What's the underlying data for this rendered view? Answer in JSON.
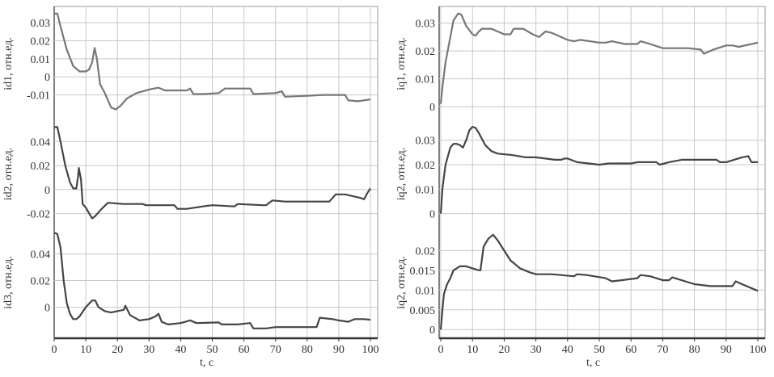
{
  "chart_data": [
    {
      "type": "line",
      "column": "left",
      "ylabel": "id1, отн.ед.",
      "ylim": [
        -0.0245,
        0.039
      ],
      "yticks": [
        {
          "v": 0.03,
          "label": "0.03"
        },
        {
          "v": 0.02,
          "label": "0.02"
        },
        {
          "v": 0.01,
          "label": "0.01"
        },
        {
          "v": 0,
          "label": "0"
        },
        {
          "v": -0.01,
          "label": "-0.01"
        }
      ],
      "color": "#777777",
      "x": [
        0,
        1,
        2,
        4,
        6,
        8,
        10,
        11,
        12,
        12.8,
        13.5,
        14.5,
        16,
        18,
        19.5,
        21,
        23,
        26,
        30,
        33,
        35,
        42,
        43,
        44,
        47,
        52,
        54,
        62,
        63,
        70,
        72,
        73,
        80,
        85,
        92,
        93,
        96,
        100
      ],
      "y": [
        0.035,
        0.035,
        0.028,
        0.015,
        0.006,
        0.003,
        0.003,
        0.004,
        0.008,
        0.016,
        0.01,
        -0.004,
        -0.009,
        -0.017,
        -0.018,
        -0.016,
        -0.012,
        -0.009,
        -0.007,
        -0.006,
        -0.0075,
        -0.0075,
        -0.0065,
        -0.0095,
        -0.0095,
        -0.009,
        -0.0065,
        -0.0065,
        -0.0095,
        -0.009,
        -0.008,
        -0.011,
        -0.0105,
        -0.01,
        -0.01,
        -0.013,
        -0.0135,
        -0.0125
      ]
    },
    {
      "type": "line",
      "column": "left",
      "ylabel": "id2, отн.ед.",
      "ylim": [
        -0.031,
        0.057
      ],
      "yticks": [
        {
          "v": 0.04,
          "label": "0.04"
        },
        {
          "v": 0.02,
          "label": "0.02"
        },
        {
          "v": 0,
          "label": "0"
        },
        {
          "v": -0.02,
          "label": "-0.02"
        }
      ],
      "color": "#454545",
      "x": [
        0,
        1,
        2,
        3.5,
        5,
        6,
        7,
        7.5,
        7.8,
        8.5,
        9,
        10,
        12,
        13,
        15,
        17,
        22,
        28,
        29,
        38,
        39,
        42,
        47,
        50,
        57,
        58,
        66,
        67,
        69,
        73,
        87,
        88,
        89,
        92,
        97,
        98,
        99,
        100
      ],
      "y": [
        0.052,
        0.052,
        0.04,
        0.02,
        0.006,
        0.001,
        0.001,
        0.01,
        0.018,
        0.008,
        -0.012,
        -0.015,
        -0.024,
        -0.022,
        -0.016,
        -0.011,
        -0.012,
        -0.012,
        -0.013,
        -0.013,
        -0.016,
        -0.016,
        -0.014,
        -0.013,
        -0.014,
        -0.012,
        -0.013,
        -0.013,
        -0.009,
        -0.01,
        -0.01,
        -0.007,
        -0.004,
        -0.004,
        -0.007,
        -0.008,
        -0.003,
        0.001
      ]
    },
    {
      "type": "line",
      "column": "left",
      "ylabel": "id3, отн.ед.",
      "ylim": [
        -0.0234,
        0.0604
      ],
      "yticks": [
        {
          "v": 0.04,
          "label": "0.04"
        },
        {
          "v": 0.02,
          "label": "0.02"
        },
        {
          "v": 0,
          "label": "0"
        }
      ],
      "color": "#454545",
      "x": [
        0,
        1,
        2,
        3,
        4,
        5,
        6,
        7,
        8,
        10,
        12,
        13,
        14,
        16,
        18,
        22,
        22.5,
        24,
        27,
        30,
        32,
        33,
        34,
        36,
        40,
        43,
        45,
        52,
        53,
        58,
        62,
        63,
        67,
        70,
        83,
        84,
        88,
        90,
        93,
        95,
        98,
        100
      ],
      "y": [
        0.056,
        0.055,
        0.045,
        0.02,
        0.003,
        -0.005,
        -0.009,
        -0.009,
        -0.007,
        0,
        0.005,
        0.005,
        0,
        -0.003,
        -0.004,
        -0.002,
        0.001,
        -0.006,
        -0.01,
        -0.009,
        -0.007,
        -0.005,
        -0.011,
        -0.013,
        -0.012,
        -0.01,
        -0.012,
        -0.0115,
        -0.013,
        -0.013,
        -0.012,
        -0.016,
        -0.016,
        -0.015,
        -0.015,
        -0.008,
        -0.009,
        -0.01,
        -0.011,
        -0.009,
        -0.009,
        -0.0095
      ]
    },
    {
      "type": "line",
      "column": "right",
      "ylabel": "iq1, отн.ед.",
      "ylim": [
        -0.0052,
        0.036
      ],
      "yticks": [
        {
          "v": 0.03,
          "label": "0.03"
        },
        {
          "v": 0.02,
          "label": "0.02"
        },
        {
          "v": 0.01,
          "label": "0.01"
        },
        {
          "v": 0,
          "label": "0"
        }
      ],
      "color": "#777777",
      "x": [
        0,
        0.5,
        1.5,
        3,
        4,
        5.5,
        6.5,
        8,
        10,
        11,
        12,
        13,
        16,
        20,
        22,
        23,
        26,
        29,
        31,
        33,
        35,
        40,
        42,
        44,
        50,
        52,
        54,
        58,
        62,
        63,
        66,
        70,
        78,
        82,
        83,
        86,
        90,
        92,
        94,
        100
      ],
      "y": [
        0.001,
        0.007,
        0.016,
        0.025,
        0.031,
        0.0335,
        0.033,
        0.029,
        0.026,
        0.0255,
        0.027,
        0.028,
        0.028,
        0.026,
        0.026,
        0.028,
        0.028,
        0.026,
        0.025,
        0.027,
        0.0265,
        0.024,
        0.0235,
        0.024,
        0.023,
        0.023,
        0.0235,
        0.0225,
        0.0225,
        0.0235,
        0.0225,
        0.021,
        0.021,
        0.0205,
        0.019,
        0.0205,
        0.022,
        0.022,
        0.0215,
        0.023
      ]
    },
    {
      "type": "line",
      "column": "right",
      "ylabel": "iq2, отн.ед.",
      "ylim": [
        -0.0054,
        0.0378
      ],
      "yticks": [
        {
          "v": 0.03,
          "label": "0.03"
        },
        {
          "v": 0.02,
          "label": "0.02"
        },
        {
          "v": 0.01,
          "label": "0.01"
        },
        {
          "v": 0,
          "label": "0"
        }
      ],
      "color": "#454545",
      "x": [
        0,
        0.5,
        1,
        1.5,
        3,
        4,
        5,
        6,
        7,
        8,
        9,
        10,
        11,
        12,
        14,
        16,
        18,
        22,
        27,
        30,
        36,
        38,
        39,
        40,
        43,
        50,
        53,
        57,
        60,
        62,
        68,
        69,
        72,
        76,
        80,
        87,
        88,
        90,
        95,
        97,
        98,
        100
      ],
      "y": [
        0,
        0.01,
        0.015,
        0.02,
        0.027,
        0.0285,
        0.0285,
        0.028,
        0.027,
        0.03,
        0.034,
        0.0355,
        0.035,
        0.033,
        0.028,
        0.0255,
        0.0245,
        0.024,
        0.023,
        0.023,
        0.022,
        0.022,
        0.0225,
        0.0225,
        0.021,
        0.02,
        0.0205,
        0.0205,
        0.0205,
        0.021,
        0.021,
        0.02,
        0.021,
        0.022,
        0.022,
        0.022,
        0.021,
        0.021,
        0.023,
        0.0235,
        0.021,
        0.021
      ]
    },
    {
      "type": "line",
      "column": "right",
      "ylabel": "iq2, отн.ед.",
      "ylim": [
        -0.0022,
        0.026
      ],
      "yticks": [
        {
          "v": 0.02,
          "label": "0.02"
        },
        {
          "v": 0.015,
          "label": "0.015"
        },
        {
          "v": 0.01,
          "label": "0.01"
        },
        {
          "v": 0.005,
          "label": "0.005"
        },
        {
          "v": 0,
          "label": "0"
        }
      ],
      "color": "#454545",
      "x": [
        0,
        0.5,
        1,
        2,
        3,
        4,
        6,
        8,
        12,
        12.5,
        13,
        13.5,
        15,
        16.5,
        18,
        20,
        22,
        25,
        28,
        30,
        33,
        35,
        42,
        43,
        46,
        52,
        54,
        57,
        62,
        63,
        66,
        70,
        72,
        73,
        80,
        85,
        92,
        93,
        95,
        100
      ],
      "y": [
        0,
        0.005,
        0.009,
        0.0115,
        0.013,
        0.015,
        0.016,
        0.016,
        0.015,
        0.015,
        0.018,
        0.021,
        0.023,
        0.024,
        0.0225,
        0.02,
        0.0175,
        0.0155,
        0.0145,
        0.014,
        0.014,
        0.014,
        0.0135,
        0.014,
        0.0138,
        0.013,
        0.0122,
        0.0125,
        0.013,
        0.0138,
        0.0135,
        0.0125,
        0.0125,
        0.0132,
        0.0115,
        0.011,
        0.011,
        0.0122,
        0.0115,
        0.0098
      ]
    }
  ],
  "xaxis": {
    "label": "t, c",
    "xlim": [
      0,
      100
    ],
    "ticks": [
      {
        "v": 0,
        "label": "0"
      },
      {
        "v": 10,
        "label": "10"
      },
      {
        "v": 20,
        "label": "20"
      },
      {
        "v": 30,
        "label": "30"
      },
      {
        "v": 40,
        "label": "40"
      },
      {
        "v": 50,
        "label": "50"
      },
      {
        "v": 60,
        "label": "60"
      },
      {
        "v": 70,
        "label": "70"
      },
      {
        "v": 80,
        "label": "80"
      },
      {
        "v": 90,
        "label": "90"
      },
      {
        "v": 100,
        "label": "100"
      }
    ]
  },
  "grid": true,
  "colors": {
    "grid": "#c8c8c8",
    "axis": "#333333"
  }
}
